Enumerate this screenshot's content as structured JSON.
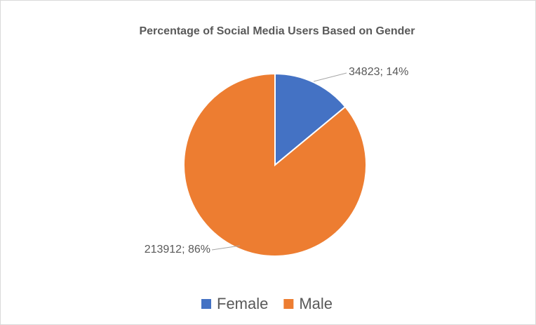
{
  "chart_data": {
    "type": "pie",
    "title": "Percentage of Social Media Users Based on Gender",
    "categories": [
      "Female",
      "Male"
    ],
    "values": [
      34823,
      213912
    ],
    "value_labels": [
      "34823; 14%",
      "213912; 86%"
    ],
    "colors": [
      "#4472c4",
      "#ed7d31"
    ],
    "legend": "bottom"
  }
}
